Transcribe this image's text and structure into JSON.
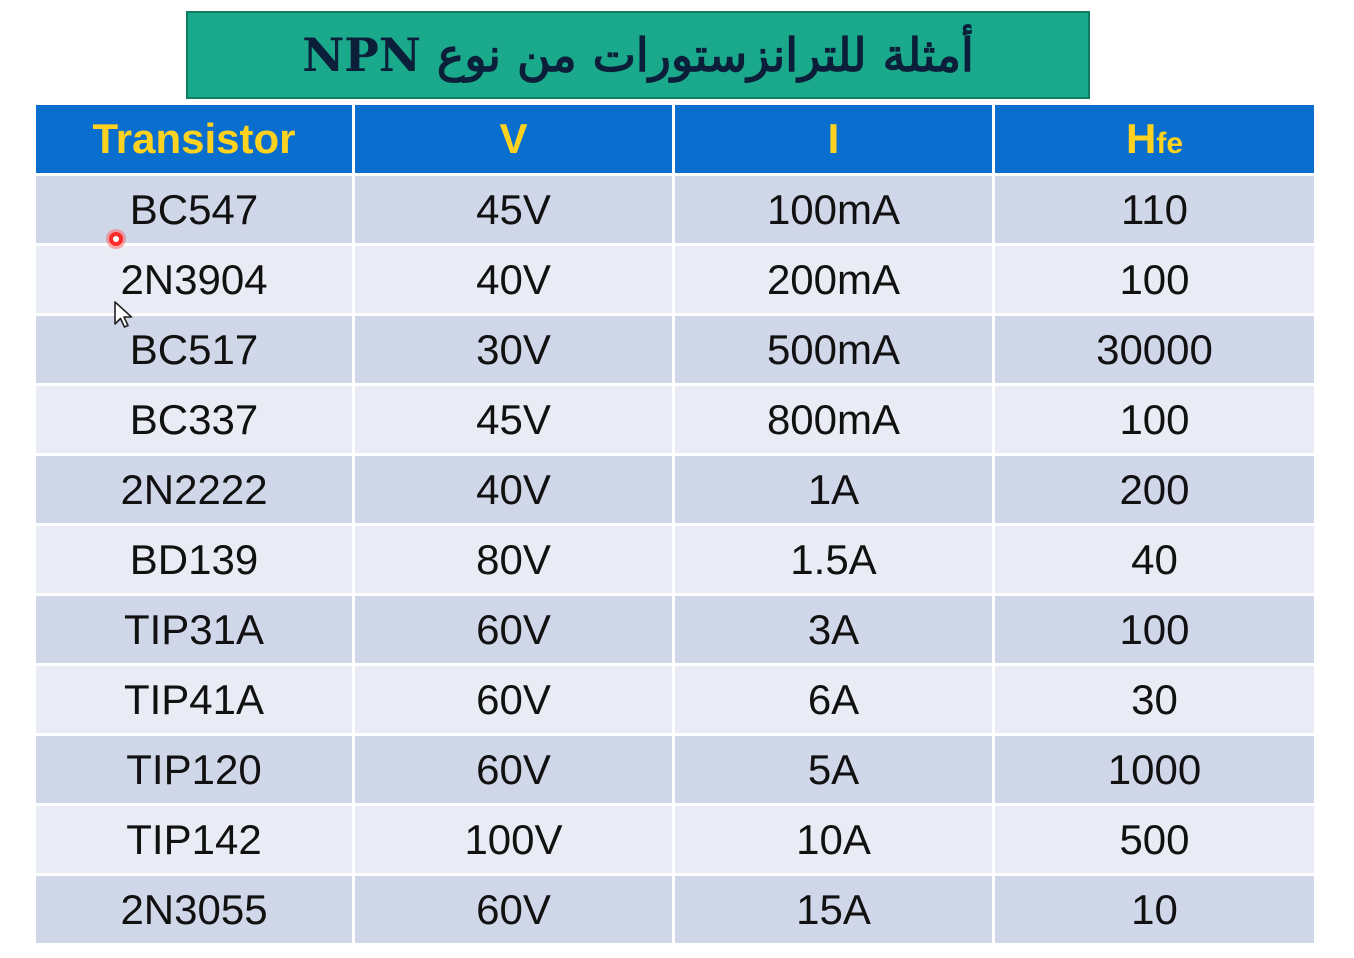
{
  "title": "أمثلة للترانزستورات من نوع NPN",
  "table": {
    "headers": {
      "transistor": "Transistor",
      "v": "V",
      "i": "I",
      "hfe_main": "H",
      "hfe_sub": "fe"
    },
    "rows": [
      {
        "transistor": "BC547",
        "v": "45V",
        "i": "100mA",
        "hfe": "110"
      },
      {
        "transistor": "2N3904",
        "v": "40V",
        "i": "200mA",
        "hfe": "100"
      },
      {
        "transistor": "BC517",
        "v": "30V",
        "i": "500mA",
        "hfe": "30000"
      },
      {
        "transistor": "BC337",
        "v": "45V",
        "i": "800mA",
        "hfe": "100"
      },
      {
        "transistor": "2N2222",
        "v": "40V",
        "i": "1A",
        "hfe": "200"
      },
      {
        "transistor": "BD139",
        "v": "80V",
        "i": "1.5A",
        "hfe": "40"
      },
      {
        "transistor": "TIP31A",
        "v": "60V",
        "i": "3A",
        "hfe": "100"
      },
      {
        "transistor": "TIP41A",
        "v": "60V",
        "i": "6A",
        "hfe": "30"
      },
      {
        "transistor": "TIP120",
        "v": "60V",
        "i": "5A",
        "hfe": "1000"
      },
      {
        "transistor": "TIP142",
        "v": "100V",
        "i": "10A",
        "hfe": "500"
      },
      {
        "transistor": "2N3055",
        "v": "60V",
        "i": "15A",
        "hfe": "10"
      }
    ]
  },
  "colors": {
    "title_bg": "#1aa98a",
    "header_bg": "#0a6ecf",
    "header_text": "#ffd21f",
    "row_odd": "#cfd7e9",
    "row_even": "#e9ecf4"
  },
  "icons": {
    "pointer": "laser-pointer-dot-icon",
    "cursor": "mouse-cursor-arrow-icon"
  }
}
